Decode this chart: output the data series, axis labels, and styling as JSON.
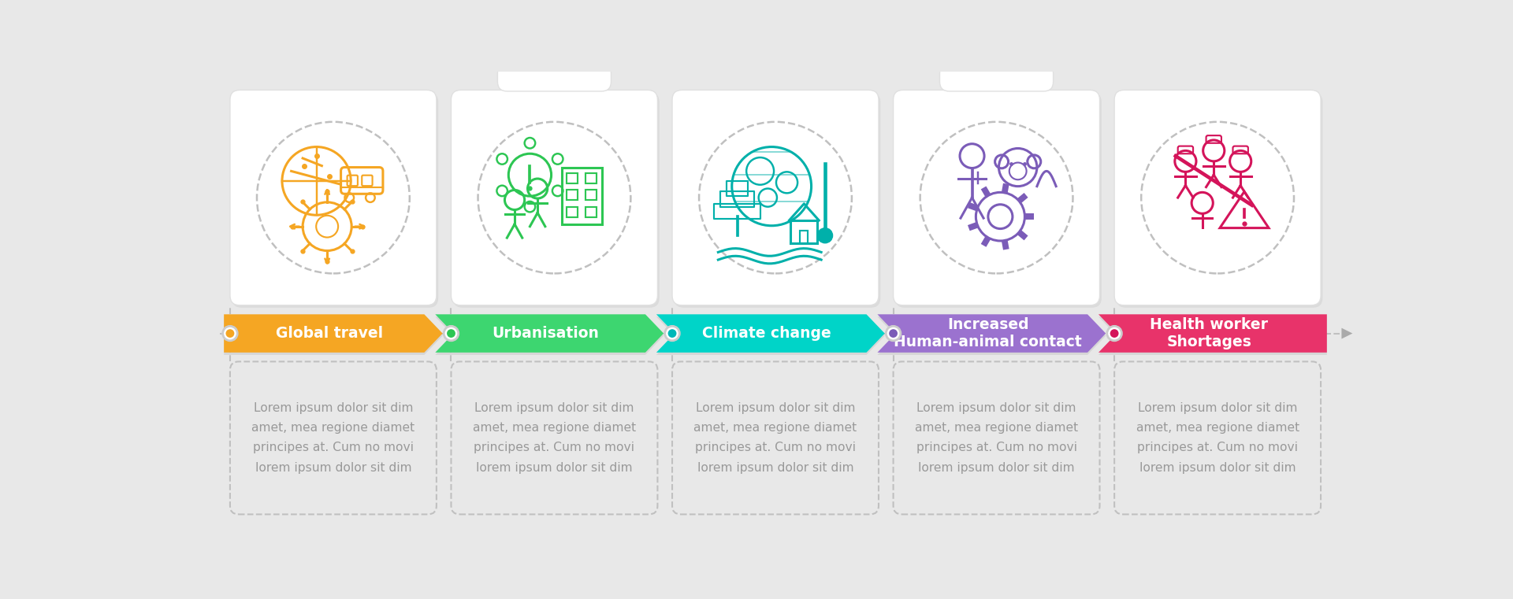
{
  "background_color": "#e8e8e8",
  "steps": [
    {
      "title": "Global travel",
      "color_left": "#f5a623",
      "color_right": "#f07f00",
      "dot_color": "#f5a623",
      "text": "Lorem ipsum dolor sit dim\namet, mea regione diamet\nprincipes at. Cum no movi\nlorem ipsum dolor sit dim",
      "icon_color": "#f5a623"
    },
    {
      "title": "Urbanisation",
      "color_left": "#3dd670",
      "color_right": "#1db84e",
      "dot_color": "#2dc653",
      "text": "Lorem ipsum dolor sit dim\namet, mea regione diamet\nprincipes at. Cum no movi\nlorem ipsum dolor sit dim",
      "icon_color": "#2dc653"
    },
    {
      "title": "Climate change",
      "color_left": "#00d4c8",
      "color_right": "#00a0a0",
      "dot_color": "#00b8b8",
      "text": "Lorem ipsum dolor sit dim\namet, mea regione diamet\nprincipes at. Cum no movi\nlorem ipsum dolor sit dim",
      "icon_color": "#00b0aa"
    },
    {
      "title": "Increased\nHuman-animal contact",
      "color_left": "#9b72cf",
      "color_right": "#6a3ea8",
      "dot_color": "#7b5cb8",
      "text": "Lorem ipsum dolor sit dim\namet, mea regione diamet\nprincipes at. Cum no movi\nlorem ipsum dolor sit dim",
      "icon_color": "#7b5cb8"
    },
    {
      "title": "Health worker\nShortages",
      "color_left": "#e8336a",
      "color_right": "#b8003a",
      "dot_color": "#d4145a",
      "text": "Lorem ipsum dolor sit dim\namet, mea regione diamet\nprincipes at. Cum no movi\nlorem ipsum dolor sit dim",
      "icon_color": "#d4145a"
    }
  ],
  "arrow_text_color": "#ffffff",
  "body_text_color": "#999999",
  "dot_ring_color": "#cccccc",
  "dashed_color": "#c0c0c0",
  "card_bg": "#ffffff",
  "timeline_arrow_color": "#aaaaaa"
}
